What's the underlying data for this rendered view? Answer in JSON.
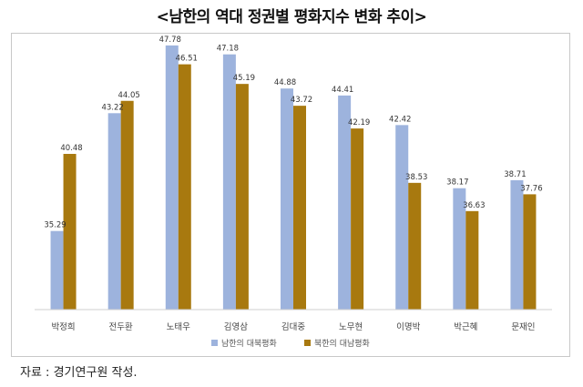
{
  "title": "<남한의 역대 정권별 평화지수 변화 추이>",
  "source": "자료 : 경기연구원 작성.",
  "colors": {
    "series_1": "#9db3dd",
    "series_2": "#a8790f"
  },
  "chart_data": {
    "type": "bar",
    "categories": [
      "박정희",
      "전두환",
      "노태우",
      "김영삼",
      "김대중",
      "노무현",
      "이명박",
      "박근혜",
      "문재인"
    ],
    "series": [
      {
        "name": "남한의 대북평화",
        "values": [
          35.29,
          43.22,
          47.78,
          47.18,
          44.88,
          44.41,
          42.42,
          38.17,
          38.71
        ]
      },
      {
        "name": "북한의 대남평화",
        "values": [
          40.48,
          44.05,
          46.51,
          45.19,
          43.72,
          42.19,
          38.53,
          36.63,
          37.76
        ]
      }
    ],
    "xlabel": "",
    "ylabel": "",
    "ylim": [
      30,
      49
    ],
    "grid": false,
    "legend": "bottom"
  }
}
